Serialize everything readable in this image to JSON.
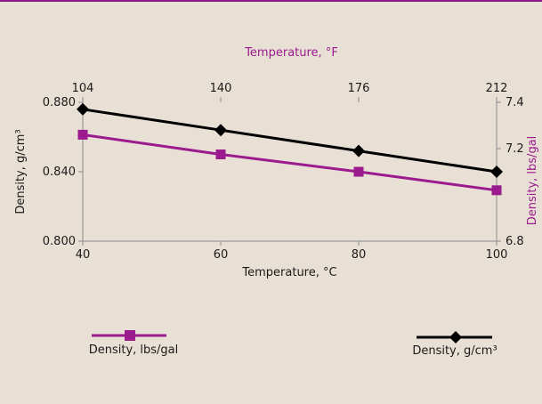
{
  "colors": {
    "background": "#e8e0d5",
    "accent_rule": "#8b1a87",
    "lbs_series": "#9b1b8e",
    "gcm3_series": "#000000",
    "axes": "#8a8a8a"
  },
  "chart_data": {
    "type": "line",
    "title": "",
    "x_bottom": {
      "label": "Temperature, °C",
      "ticks": [
        40,
        60,
        80,
        100
      ],
      "range": [
        40,
        100
      ]
    },
    "x_top": {
      "label": "Temperature, °F",
      "ticks": [
        "104",
        "140",
        "176",
        "212"
      ]
    },
    "y_left": {
      "label": "Density, g/cm³",
      "ticks": [
        "0.800",
        "0.840",
        "0.880"
      ],
      "range": [
        0.8,
        0.88
      ]
    },
    "y_right": {
      "label": "Density, lbs/gal",
      "ticks": [
        "6.8",
        "7.2",
        "7.4"
      ],
      "range": [
        6.8,
        7.4
      ]
    },
    "x": [
      40,
      60,
      80,
      100
    ],
    "series": [
      {
        "name": "Density, g/cm³",
        "axis": "left",
        "marker": "diamond",
        "values": [
          0.876,
          0.864,
          0.852,
          0.84
        ]
      },
      {
        "name": "Density, lbs/gal",
        "axis": "right",
        "marker": "square",
        "values": [
          7.26,
          7.175,
          7.1,
          7.02
        ]
      }
    ],
    "legend": [
      "Density, lbs/gal",
      "Density, g/cm³"
    ],
    "grid": false
  }
}
